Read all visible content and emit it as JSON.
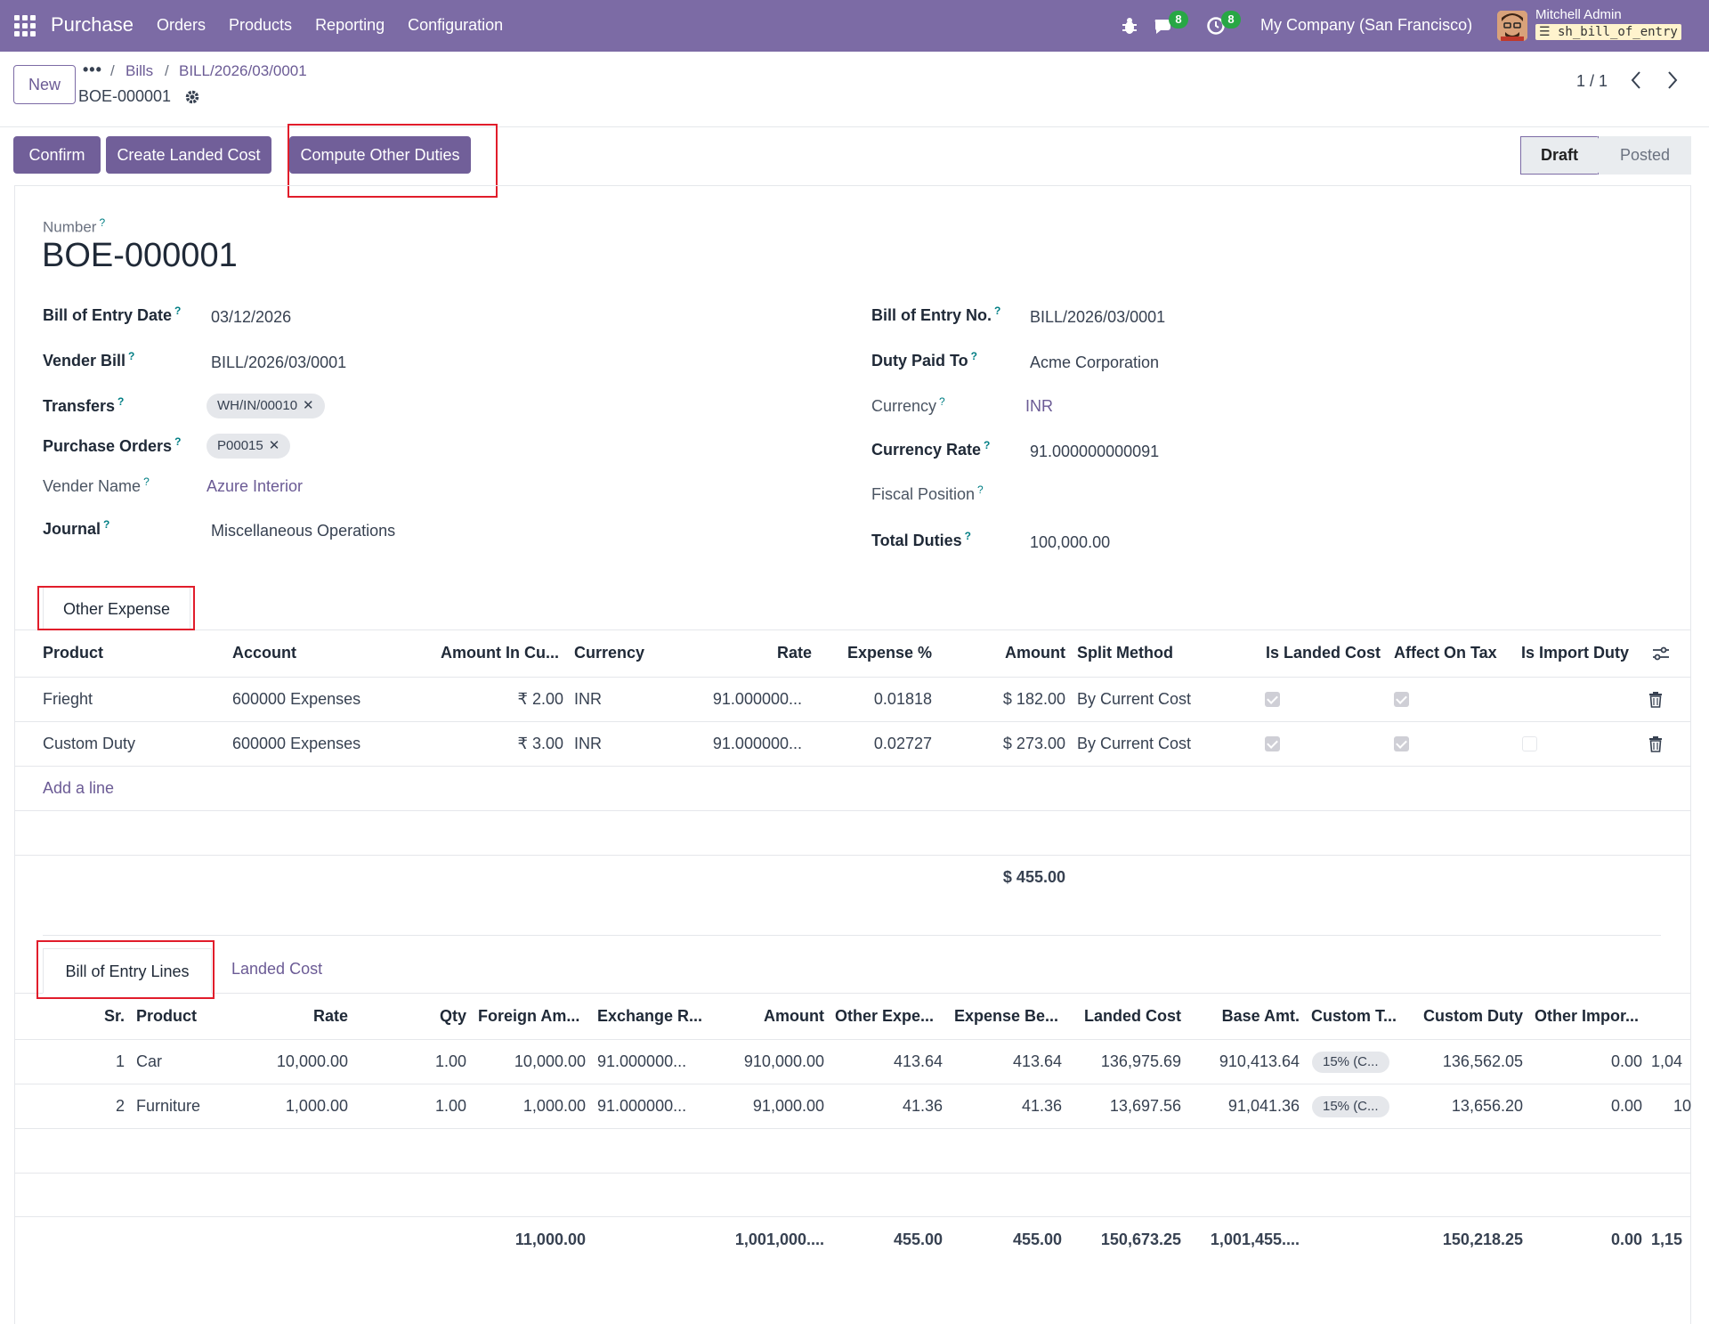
{
  "navbar": {
    "app_name": "Purchase",
    "menu": [
      "Orders",
      "Products",
      "Reporting",
      "Configuration"
    ],
    "chat_count": "8",
    "activity_count": "8",
    "company": "My Company (San Francisco)",
    "user_name": "Mitchell Admin",
    "db_name": "sh_bill_of_entry"
  },
  "control": {
    "new_label": "New",
    "breadcrumb_dots": "•••",
    "breadcrumb": [
      "Bills",
      "BILL/2026/03/0001"
    ],
    "record_name": "BOE-000001",
    "pager": "1 / 1"
  },
  "actions": {
    "confirm": "Confirm",
    "create_landed_cost": "Create Landed Cost",
    "compute_other_duties": "Compute Other Duties"
  },
  "status": {
    "draft": "Draft",
    "posted": "Posted"
  },
  "form": {
    "number_label": "Number",
    "number_value": "BOE-000001",
    "left": {
      "boe_date_label": "Bill of Entry Date",
      "boe_date_value": "03/12/2026",
      "vender_bill_label": "Vender Bill",
      "vender_bill_value": "BILL/2026/03/0001",
      "transfers_label": "Transfers",
      "transfers_tag": "WH/IN/00010",
      "po_label": "Purchase Orders",
      "po_tag": "P00015",
      "vender_name_label": "Vender Name",
      "vender_name_value": "Azure Interior",
      "journal_label": "Journal",
      "journal_value": "Miscellaneous Operations"
    },
    "right": {
      "boe_no_label": "Bill of Entry No.",
      "boe_no_value": "BILL/2026/03/0001",
      "duty_paid_label": "Duty Paid To",
      "duty_paid_value": "Acme Corporation",
      "currency_label": "Currency",
      "currency_value": "INR",
      "currency_rate_label": "Currency Rate",
      "currency_rate_value": "91.000000000091",
      "fiscal_label": "Fiscal Position",
      "total_duties_label": "Total Duties",
      "total_duties_value": "100,000.00"
    }
  },
  "expense_tab": {
    "label": "Other Expense",
    "headers": [
      "Product",
      "Account",
      "Amount In Cu...",
      "Currency",
      "Rate",
      "Expense %",
      "Amount",
      "Split Method",
      "Is Landed Cost",
      "Affect On Tax",
      "Is Import Duty"
    ],
    "rows": [
      {
        "product": "Frieght",
        "account": "600000 Expenses",
        "amount_cu": "₹ 2.00",
        "currency": "INR",
        "rate": "91.000000...",
        "expense_pct": "0.01818",
        "amount": "$ 182.00",
        "split": "By Current Cost",
        "landed": true,
        "affect": true,
        "import": false
      },
      {
        "product": "Custom Duty",
        "account": "600000 Expenses",
        "amount_cu": "₹ 3.00",
        "currency": "INR",
        "rate": "91.000000...",
        "expense_pct": "0.02727",
        "amount": "$ 273.00",
        "split": "By Current Cost",
        "landed": true,
        "affect": true,
        "import": false
      }
    ],
    "add_line": "Add a line",
    "total": "$ 455.00"
  },
  "lines_tab": {
    "tabs": [
      "Bill of Entry Lines",
      "Landed Cost"
    ],
    "headers": [
      "Sr.",
      "Product",
      "Rate",
      "Qty",
      "Foreign Am...",
      "Exchange R...",
      "Amount",
      "Other Expe...",
      "Expense Be...",
      "Landed Cost",
      "Base Amt.",
      "Custom T...",
      "Custom Duty",
      "Other Impor..."
    ],
    "rows": [
      {
        "sr": "1",
        "product": "Car",
        "rate": "10,000.00",
        "qty": "1.00",
        "foreign": "10,000.00",
        "exchange": "91.000000...",
        "amount": "910,000.00",
        "other_exp": "413.64",
        "exp_before": "413.64",
        "landed": "136,975.69",
        "base": "910,413.64",
        "custom_tax": "15% (C...",
        "custom_duty": "136,562.05",
        "other_import": "0.00",
        "overflow": "1,04"
      },
      {
        "sr": "2",
        "product": "Furniture",
        "rate": "1,000.00",
        "qty": "1.00",
        "foreign": "1,000.00",
        "exchange": "91.000000...",
        "amount": "91,000.00",
        "other_exp": "41.36",
        "exp_before": "41.36",
        "landed": "13,697.56",
        "base": "91,041.36",
        "custom_tax": "15% (C...",
        "custom_duty": "13,656.20",
        "other_import": "0.00",
        "overflow": "10"
      }
    ],
    "totals": {
      "foreign": "11,000.00",
      "amount": "1,001,000....",
      "other_exp": "455.00",
      "exp_before": "455.00",
      "landed": "150,673.25",
      "base": "1,001,455....",
      "custom_duty": "150,218.25",
      "other_import": "0.00",
      "overflow": "1,15"
    }
  }
}
